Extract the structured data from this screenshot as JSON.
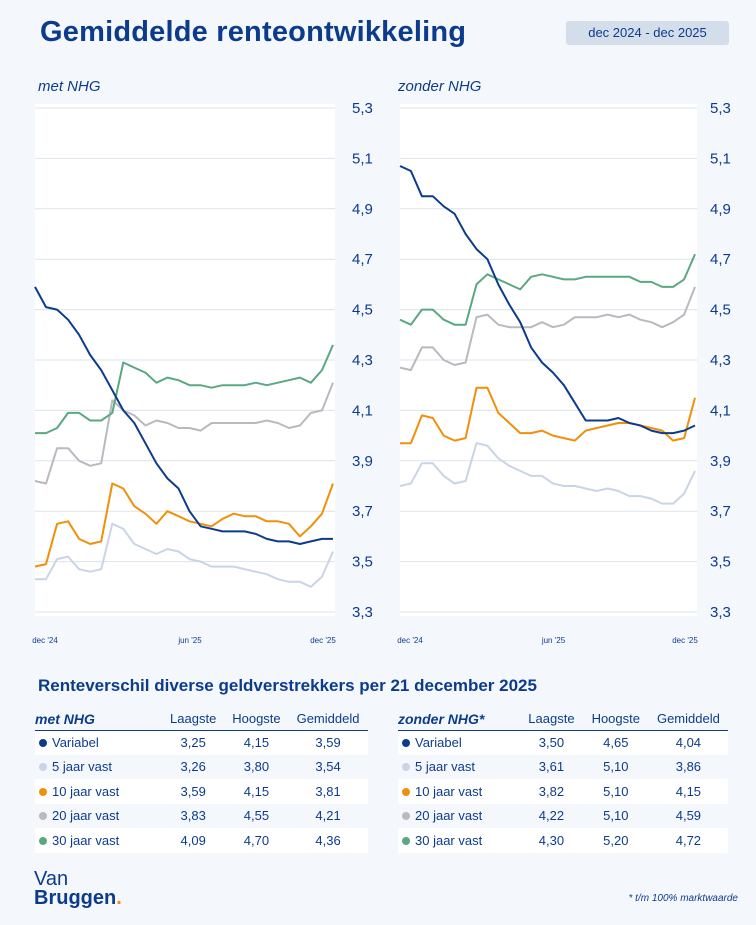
{
  "header": {
    "title": "Gemiddelde renteontwikkeling",
    "period": "dec 2024 - dec 2025"
  },
  "colors": {
    "Variabel": "#0d3b8c",
    "5 jaar vast": "#c9d4e6",
    "10 jaar vast": "#f0900a",
    "20 jaar vast": "#b9b9be",
    "30 jaar vast": "#5aa882"
  },
  "chart_data": [
    {
      "type": "line",
      "title": "met NHG",
      "ylim": [
        3.3,
        5.3
      ],
      "yticks": [
        "5,3",
        "5,1",
        "4,9",
        "4,7",
        "4,5",
        "4,3",
        "4,1",
        "3,9",
        "3,7",
        "3,5",
        "3,3"
      ],
      "xticks": [
        "dec '24",
        "jun '25",
        "dec '25"
      ],
      "grid": true,
      "series": [
        {
          "name": "Variabel",
          "values": [
            4.59,
            4.51,
            4.5,
            4.46,
            4.4,
            4.32,
            4.26,
            4.18,
            4.1,
            4.05,
            3.97,
            3.89,
            3.83,
            3.79,
            3.7,
            3.64,
            3.63,
            3.62,
            3.62,
            3.62,
            3.61,
            3.59,
            3.58,
            3.58,
            3.57,
            3.58,
            3.59,
            3.59
          ]
        },
        {
          "name": "5 jaar vast",
          "values": [
            3.43,
            3.43,
            3.51,
            3.52,
            3.47,
            3.46,
            3.47,
            3.65,
            3.63,
            3.57,
            3.55,
            3.53,
            3.55,
            3.54,
            3.51,
            3.5,
            3.48,
            3.48,
            3.48,
            3.47,
            3.46,
            3.45,
            3.43,
            3.42,
            3.42,
            3.4,
            3.44,
            3.54
          ]
        },
        {
          "name": "10 jaar vast",
          "values": [
            3.48,
            3.49,
            3.65,
            3.66,
            3.59,
            3.57,
            3.58,
            3.81,
            3.79,
            3.72,
            3.69,
            3.65,
            3.7,
            3.68,
            3.66,
            3.65,
            3.64,
            3.67,
            3.69,
            3.68,
            3.68,
            3.66,
            3.66,
            3.65,
            3.6,
            3.64,
            3.69,
            3.81
          ]
        },
        {
          "name": "20 jaar vast",
          "values": [
            3.82,
            3.81,
            3.95,
            3.95,
            3.9,
            3.88,
            3.89,
            4.14,
            4.1,
            4.08,
            4.04,
            4.06,
            4.05,
            4.03,
            4.03,
            4.02,
            4.05,
            4.05,
            4.05,
            4.05,
            4.05,
            4.06,
            4.05,
            4.03,
            4.04,
            4.09,
            4.1,
            4.21
          ]
        },
        {
          "name": "30 jaar vast",
          "values": [
            4.01,
            4.01,
            4.03,
            4.09,
            4.09,
            4.06,
            4.06,
            4.09,
            4.29,
            4.27,
            4.25,
            4.21,
            4.23,
            4.22,
            4.2,
            4.2,
            4.19,
            4.2,
            4.2,
            4.2,
            4.21,
            4.2,
            4.21,
            4.22,
            4.23,
            4.21,
            4.26,
            4.36
          ]
        }
      ]
    },
    {
      "type": "line",
      "title": "zonder NHG",
      "ylim": [
        3.3,
        5.3
      ],
      "yticks": [
        "5,3",
        "5,1",
        "4,9",
        "4,7",
        "4,5",
        "4,3",
        "4,1",
        "3,9",
        "3,7",
        "3,5",
        "3,3"
      ],
      "xticks": [
        "dec '24",
        "jun '25",
        "dec '25"
      ],
      "grid": true,
      "series": [
        {
          "name": "Variabel",
          "values": [
            5.07,
            5.05,
            4.95,
            4.95,
            4.91,
            4.88,
            4.8,
            4.74,
            4.7,
            4.6,
            4.52,
            4.45,
            4.35,
            4.29,
            4.25,
            4.2,
            4.13,
            4.06,
            4.06,
            4.06,
            4.07,
            4.05,
            4.04,
            4.02,
            4.01,
            4.01,
            4.02,
            4.04
          ]
        },
        {
          "name": "5 jaar vast",
          "values": [
            3.8,
            3.81,
            3.89,
            3.89,
            3.84,
            3.81,
            3.82,
            3.97,
            3.96,
            3.91,
            3.88,
            3.86,
            3.84,
            3.84,
            3.81,
            3.8,
            3.8,
            3.79,
            3.78,
            3.79,
            3.78,
            3.76,
            3.76,
            3.75,
            3.73,
            3.73,
            3.77,
            3.86
          ]
        },
        {
          "name": "10 jaar vast",
          "values": [
            3.97,
            3.97,
            4.08,
            4.07,
            4.0,
            3.98,
            3.99,
            4.19,
            4.19,
            4.09,
            4.05,
            4.01,
            4.01,
            4.02,
            4.0,
            3.99,
            3.98,
            4.02,
            4.03,
            4.04,
            4.05,
            4.05,
            4.04,
            4.03,
            4.02,
            3.98,
            3.99,
            4.15
          ]
        },
        {
          "name": "20 jaar vast",
          "values": [
            4.27,
            4.26,
            4.35,
            4.35,
            4.3,
            4.28,
            4.29,
            4.47,
            4.48,
            4.44,
            4.43,
            4.43,
            4.43,
            4.45,
            4.43,
            4.44,
            4.47,
            4.47,
            4.47,
            4.48,
            4.47,
            4.48,
            4.46,
            4.45,
            4.43,
            4.45,
            4.48,
            4.59
          ]
        },
        {
          "name": "30 jaar vast",
          "values": [
            4.46,
            4.44,
            4.5,
            4.5,
            4.46,
            4.44,
            4.44,
            4.6,
            4.64,
            4.62,
            4.6,
            4.58,
            4.63,
            4.64,
            4.63,
            4.62,
            4.62,
            4.63,
            4.63,
            4.63,
            4.63,
            4.63,
            4.61,
            4.61,
            4.59,
            4.59,
            4.62,
            4.72
          ]
        }
      ]
    }
  ],
  "section_title": "Renteverschil diverse geldverstrekkers per 21 december 2025",
  "tables": [
    {
      "title": "met NHG",
      "columns": [
        "Laagste",
        "Hoogste",
        "Gemiddeld"
      ],
      "rows": [
        [
          "Variabel",
          "3,25",
          "4,15",
          "3,59"
        ],
        [
          "5 jaar vast",
          "3,26",
          "3,80",
          "3,54"
        ],
        [
          "10 jaar vast",
          "3,59",
          "4,15",
          "3,81"
        ],
        [
          "20 jaar vast",
          "3,83",
          "4,55",
          "4,21"
        ],
        [
          "30 jaar vast",
          "4,09",
          "4,70",
          "4,36"
        ]
      ]
    },
    {
      "title": "zonder NHG*",
      "columns": [
        "Laagste",
        "Hoogste",
        "Gemiddeld"
      ],
      "rows": [
        [
          "Variabel",
          "3,50",
          "4,65",
          "4,04"
        ],
        [
          "5 jaar vast",
          "3,61",
          "5,10",
          "3,86"
        ],
        [
          "10 jaar vast",
          "3,82",
          "5,10",
          "4,15"
        ],
        [
          "20 jaar vast",
          "4,22",
          "5,10",
          "4,59"
        ],
        [
          "30 jaar vast",
          "4,30",
          "5,20",
          "4,72"
        ]
      ]
    }
  ],
  "logo": {
    "line1": "Van",
    "line2": "Bruggen",
    "dot": "."
  },
  "footnote": "* t/m 100% marktwaarde"
}
